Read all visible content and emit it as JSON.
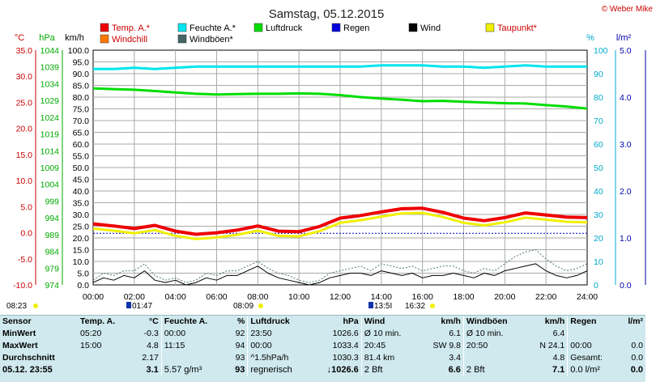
{
  "title": "Samstag, 05.12.2015",
  "copyright": "© Weber Mike",
  "legend": [
    {
      "label": "Temp. A.*",
      "color": "#ee0000"
    },
    {
      "label": "Feuchte A.*",
      "color": "#00e5ee"
    },
    {
      "label": "Luftdruck",
      "color": "#00dd00"
    },
    {
      "label": "Regen",
      "color": "#0000dd"
    },
    {
      "label": "Wind",
      "color": "#000000"
    },
    {
      "label": "Taupunkt*",
      "color": "#f0f000"
    },
    {
      "label": "Windchill",
      "color": "#ff7700"
    },
    {
      "label": "Windböen*",
      "color": "#446666"
    }
  ],
  "chart_data": {
    "type": "line",
    "x_ticks": [
      "00:00",
      "02:00",
      "04:00",
      "06:00",
      "08:00",
      "10:00",
      "12:00",
      "14:00",
      "16:00",
      "18:00",
      "20:00",
      "22:00",
      "24:00"
    ],
    "axes": {
      "temp": {
        "unit": "°C",
        "ticks": [
          "35.0",
          "30.0",
          "25.0",
          "20.0",
          "15.0",
          "10.0",
          "5.0",
          "0.0",
          "-5.0",
          "-10.0"
        ],
        "range": [
          -10,
          35
        ]
      },
      "pressure": {
        "unit": "hPa",
        "ticks": [
          "1044",
          "1039",
          "1034",
          "1029",
          "1024",
          "1019",
          "1014",
          "1009",
          "1004",
          "999",
          "994",
          "989",
          "984",
          "979",
          "974"
        ],
        "range": [
          974,
          1044
        ]
      },
      "wind": {
        "unit": "km/h",
        "ticks": [
          "100.0",
          "95.0",
          "90.0",
          "85.0",
          "80.0",
          "75.0",
          "70.0",
          "65.0",
          "60.0",
          "55.0",
          "50.0",
          "45.0",
          "40.0",
          "35.0",
          "30.0",
          "25.0",
          "20.0",
          "15.0",
          "10.0",
          "5.0",
          "0.0"
        ],
        "range": [
          0,
          100
        ]
      },
      "humidity": {
        "unit": "%",
        "ticks": [
          "100",
          "90",
          "80",
          "70",
          "60",
          "50",
          "40",
          "30",
          "20",
          "10",
          "0"
        ],
        "range": [
          0,
          100
        ]
      },
      "rain": {
        "unit": "l/m²",
        "ticks": [
          "5.0",
          "4.0",
          "3.0",
          "2.0",
          "1.0",
          "0.0"
        ],
        "range": [
          0,
          5
        ]
      }
    },
    "series": [
      {
        "name": "Feuchte A.*",
        "axis": "humidity",
        "x": [
          0,
          1,
          2,
          3,
          4,
          5,
          6,
          7,
          8,
          9,
          10,
          11,
          12,
          13,
          14,
          15,
          16,
          17,
          18,
          19,
          20,
          21,
          22,
          23,
          24
        ],
        "values": [
          92,
          92,
          92.5,
          92,
          92.5,
          93,
          93,
          93,
          93,
          93,
          93,
          93,
          93,
          93,
          93.5,
          93.5,
          93.5,
          93,
          93,
          92.5,
          93,
          93.5,
          93,
          93,
          93
        ]
      },
      {
        "name": "Luftdruck",
        "axis": "pressure",
        "x": [
          0,
          1,
          2,
          3,
          4,
          5,
          6,
          7,
          8,
          9,
          10,
          11,
          12,
          13,
          14,
          15,
          16,
          17,
          18,
          19,
          20,
          21,
          22,
          23,
          24
        ],
        "values": [
          1032.6,
          1032.4,
          1032.2,
          1031.8,
          1031.4,
          1031.0,
          1030.8,
          1030.9,
          1031.0,
          1031.0,
          1031.1,
          1031.0,
          1030.6,
          1030.0,
          1029.6,
          1029.2,
          1028.8,
          1028.9,
          1028.6,
          1028.4,
          1028.2,
          1028.1,
          1027.6,
          1027.2,
          1026.6
        ]
      },
      {
        "name": "Temp. A.*",
        "axis": "temp",
        "x": [
          0,
          1,
          2,
          3,
          4,
          5,
          6,
          7,
          8,
          9,
          10,
          11,
          12,
          13,
          14,
          15,
          16,
          17,
          18,
          19,
          20,
          21,
          22,
          23,
          24
        ],
        "values": [
          1.7,
          1.3,
          0.8,
          1.4,
          0.3,
          -0.3,
          0.0,
          0.5,
          1.3,
          0.3,
          0.2,
          1.2,
          2.8,
          3.3,
          4.0,
          4.6,
          4.7,
          3.9,
          2.8,
          2.3,
          2.9,
          3.8,
          3.4,
          3.0,
          2.9
        ]
      },
      {
        "name": "Taupunkt*",
        "axis": "temp",
        "x": [
          0,
          1,
          2,
          3,
          4,
          5,
          6,
          7,
          8,
          9,
          10,
          11,
          12,
          13,
          14,
          15,
          16,
          17,
          18,
          19,
          20,
          21,
          22,
          23,
          24
        ],
        "values": [
          0.8,
          0.4,
          -0.1,
          0.5,
          -0.6,
          -1.2,
          -0.9,
          -0.4,
          0.4,
          -0.6,
          -0.7,
          0.3,
          1.9,
          2.4,
          3.1,
          3.7,
          3.8,
          3.0,
          1.9,
          1.4,
          2.0,
          2.9,
          2.5,
          2.1,
          2.0
        ]
      },
      {
        "name": "Regen",
        "axis": "rain",
        "x": [
          0,
          24
        ],
        "values": [
          1.1,
          1.1
        ]
      },
      {
        "name": "Wind",
        "axis": "wind",
        "x": [
          0,
          0.5,
          1,
          1.5,
          2,
          2.5,
          3,
          3.5,
          4,
          4.5,
          5,
          5.5,
          6,
          6.5,
          7,
          7.5,
          8,
          8.5,
          9,
          9.5,
          10,
          10.5,
          11,
          11.5,
          12,
          12.5,
          13,
          13.5,
          14,
          14.5,
          15,
          15.5,
          16,
          16.5,
          17,
          17.5,
          18,
          18.5,
          19,
          19.5,
          20,
          20.5,
          21,
          21.5,
          22,
          22.5,
          23,
          23.5,
          24
        ],
        "values": [
          1,
          3,
          2,
          4,
          3,
          6,
          2,
          1,
          2,
          0,
          1,
          3,
          2,
          4,
          4,
          6,
          8,
          5,
          3,
          2,
          1,
          0,
          1,
          3,
          4,
          5,
          5,
          4,
          6,
          5,
          4,
          5,
          3,
          4,
          4,
          5,
          4,
          3,
          5,
          4,
          6,
          7,
          8,
          9,
          6,
          4,
          3,
          4,
          6
        ]
      },
      {
        "name": "Windböen*",
        "axis": "wind",
        "x": [
          0,
          0.5,
          1,
          1.5,
          2,
          2.5,
          3,
          3.5,
          4,
          4.5,
          5,
          5.5,
          6,
          6.5,
          7,
          7.5,
          8,
          8.5,
          9,
          9.5,
          10,
          10.5,
          11,
          11.5,
          12,
          12.5,
          13,
          13.5,
          14,
          14.5,
          15,
          15.5,
          16,
          16.5,
          17,
          17.5,
          18,
          18.5,
          19,
          19.5,
          20,
          20.5,
          21,
          21.5,
          22,
          22.5,
          23,
          23.5,
          24
        ],
        "values": [
          2,
          5,
          4,
          6,
          6,
          9,
          4,
          2,
          3,
          1,
          2,
          5,
          4,
          6,
          6,
          8,
          10,
          7,
          5,
          4,
          2,
          1,
          2,
          5,
          6,
          7,
          8,
          6,
          9,
          8,
          7,
          8,
          6,
          7,
          8,
          8,
          6,
          5,
          7,
          6,
          9,
          12,
          14,
          15,
          11,
          8,
          6,
          7,
          9
        ]
      }
    ],
    "markers_below": [
      {
        "label": "08:23"
      },
      {
        "label": "01:47"
      },
      {
        "label": "08:09"
      },
      {
        "label": "13:5I"
      },
      {
        "label": "16:32"
      }
    ]
  },
  "table": {
    "headers": [
      "Sensor",
      "Temp. A.",
      "°C",
      "Feuchte A.",
      "%",
      "Luftdruck",
      "hPa",
      "Wind",
      "km/h",
      "Windböen",
      "km/h",
      "Regen",
      "l/m²"
    ],
    "rows": [
      {
        "label": "MinWert",
        "c": [
          "05:20",
          "-0.3",
          "00:00",
          "92",
          "23:50",
          "1026.6",
          "Ø 10 min.",
          "6.1",
          "Ø 10 min.",
          "6.4",
          "",
          ""
        ]
      },
      {
        "label": "MaxWert",
        "c": [
          "15:00",
          "4.8",
          "11:15",
          "94",
          "00:00",
          "1033.4",
          "20:45",
          "SW 9.8",
          "20:50",
          "N 24.1",
          "00:00",
          "0.0"
        ]
      },
      {
        "label": "Durchschnitt",
        "c": [
          "",
          "2.17",
          "",
          "93",
          "^1.5hPa/h",
          "1030.3",
          "81.4 km",
          "3.4",
          "",
          "4.8",
          "Gesamt:",
          "0.0"
        ]
      },
      {
        "label": "05.12. 23:55",
        "c": [
          "",
          "3.1",
          "5.57 g/m³",
          "93",
          "regnerisch",
          "↓1026.6",
          "2 Bft",
          "6.6",
          "2 Bft",
          "7.1",
          "0.0 l/m²",
          "0.0"
        ]
      }
    ]
  }
}
